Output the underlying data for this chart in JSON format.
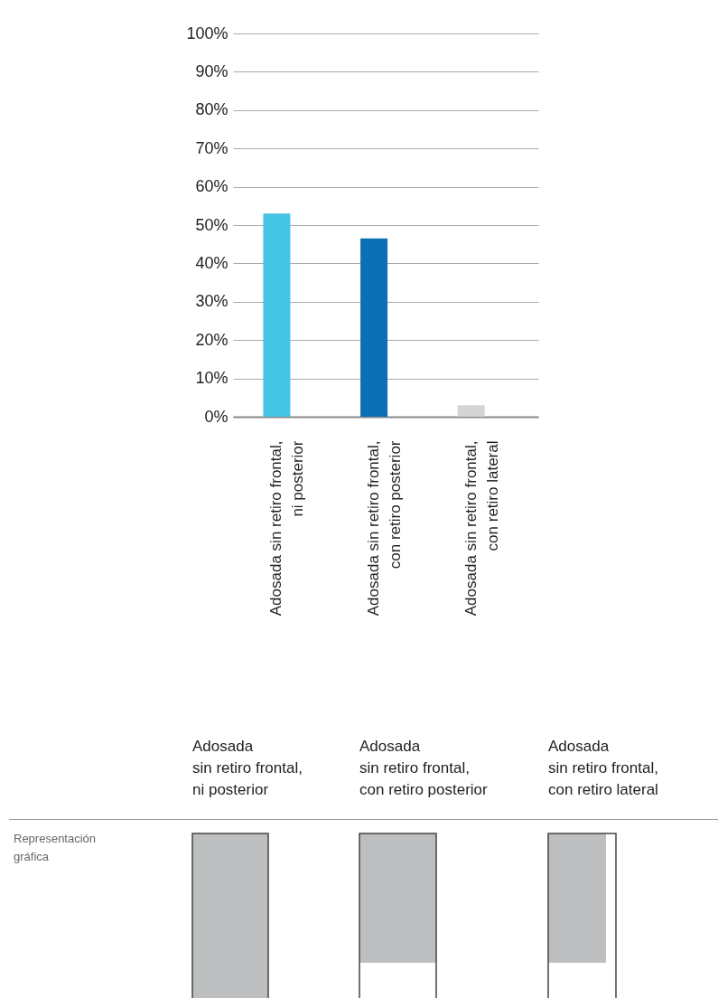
{
  "chart_data": {
    "type": "bar",
    "categories": [
      "Adosada sin retiro frontal,\nni posterior",
      "Adosada sin retiro frontal,\ncon retiro posterior",
      "Adosada sin retiro frontal,\ncon retiro lateral"
    ],
    "values": [
      53,
      46.5,
      3
    ],
    "colors": [
      "#45c5e5",
      "#0b6fb6",
      "#d4d5d4"
    ],
    "ylim": [
      0,
      100
    ],
    "yticks": [
      {
        "value": 0,
        "label": "0%"
      },
      {
        "value": 10,
        "label": "10%"
      },
      {
        "value": 20,
        "label": "20%"
      },
      {
        "value": 30,
        "label": "30%"
      },
      {
        "value": 40,
        "label": "40%"
      },
      {
        "value": 50,
        "label": "50%"
      },
      {
        "value": 60,
        "label": "60%"
      },
      {
        "value": 70,
        "label": "70%"
      },
      {
        "value": 80,
        "label": "80%"
      },
      {
        "value": 90,
        "label": "90%"
      },
      {
        "value": 100,
        "label": "100%"
      }
    ],
    "grid": "y",
    "annotations": [
      "Adosada\nsin retiro frontal,\nni posterior",
      "Adosada\nsin retiro frontal,\ncon retiro posterior",
      "Adosada\nsin retiro frontal,\ncon retiro lateral",
      "Representación gráfica"
    ]
  }
}
